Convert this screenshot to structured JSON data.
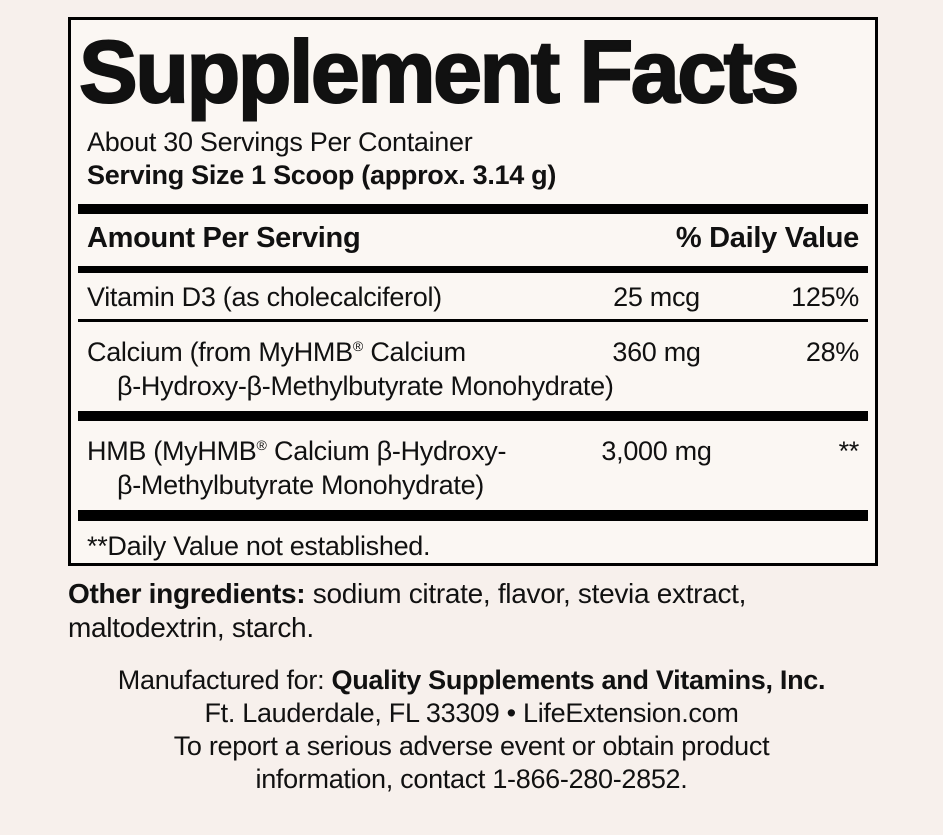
{
  "colors": {
    "page_bg": "#f7f0ec",
    "panel_bg": "#fbf7f3",
    "ink": "#111111"
  },
  "panel": {
    "title": "Supplement Facts",
    "servings_line": "About 30 Servings Per Container",
    "serving_size_line": "Serving Size 1 Scoop (approx. 3.14 g)",
    "columns": {
      "amount_header": "Amount Per Serving",
      "dv_header": "% Daily Value"
    },
    "rows": [
      {
        "name": "Vitamin D3 (as cholecalciferol)",
        "amount": "25 mcg",
        "dv": "125%"
      },
      {
        "name_a": "Calcium (from MyHMB",
        "trademark": "®",
        "name_b": " Calcium",
        "name_line2": "β-Hydroxy-β-Methylbutyrate Monohydrate)",
        "amount": "360 mg",
        "dv": "28%"
      },
      {
        "name_a": "HMB (MyHMB",
        "trademark": "®",
        "name_b": " Calcium β-Hydroxy-",
        "name_line2": "β-Methylbutyrate Monohydrate)",
        "amount": "3,000 mg",
        "dv": "**"
      }
    ],
    "footnote": "**Daily Value not established."
  },
  "other_ingredients": {
    "label": "Other ingredients:",
    "text": " sodium citrate, flavor, stevia extract, maltodextrin, starch."
  },
  "manufacturer": {
    "line1_prefix": "Manufactured for: ",
    "line1_bold": "Quality Supplements and Vitamins, Inc.",
    "line2": "Ft. Lauderdale, FL 33309 • LifeExtension.com",
    "line3": "To report a serious adverse event or obtain product",
    "line4": "information, contact 1-866-280-2852."
  }
}
